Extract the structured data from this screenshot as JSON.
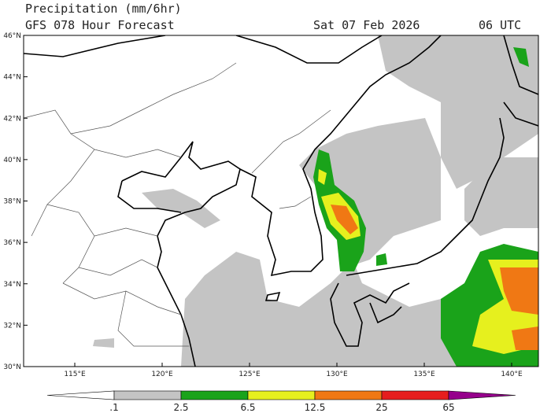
{
  "header": {
    "title": "Precipitation (mm/6hr)",
    "subtitle": "GFS 078 Hour Forecast",
    "date": "Sat 07 Feb 2026",
    "time": "06 UTC"
  },
  "map": {
    "lat_labels": [
      "46°N",
      "44°N",
      "42°N",
      "40°N",
      "38°N",
      "36°N",
      "34°N",
      "32°N",
      "30°N"
    ],
    "lon_labels": [
      "115°E",
      "120°E",
      "125°E",
      "130°E",
      "135°E",
      "140°E"
    ]
  },
  "legend": {
    "labels": [
      ".1",
      "2.5",
      "6.5",
      "12.5",
      "25",
      "65"
    ],
    "colors": [
      "#ffffff",
      "#c4c4c4",
      "#1aa31a",
      "#e6f01e",
      "#f07814",
      "#e61e1e",
      "#96008c"
    ]
  }
}
